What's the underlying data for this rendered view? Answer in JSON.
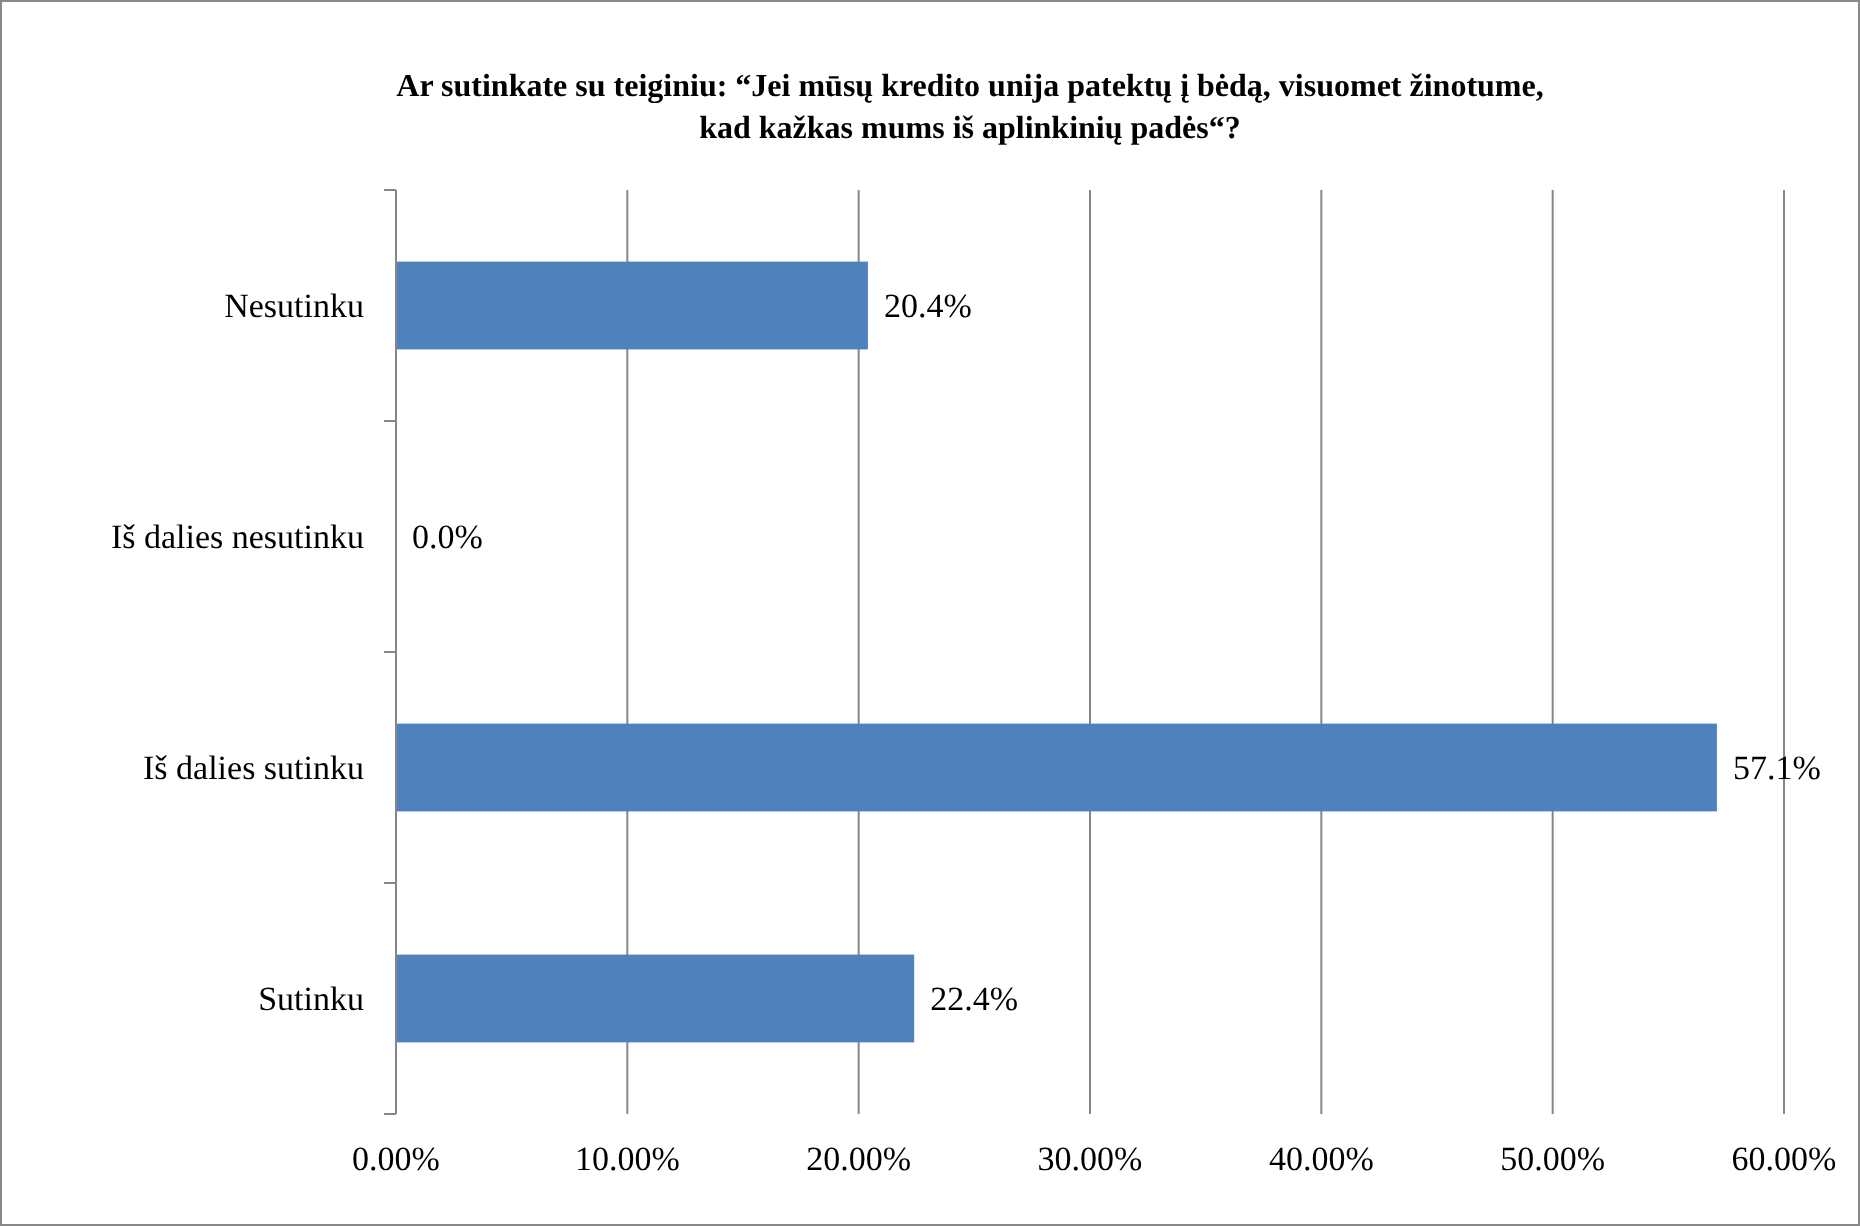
{
  "chart_data": {
    "type": "bar",
    "orientation": "horizontal",
    "title": "Ar sutinkate su teiginiu: “Jei mūsų kredito unija patektų į bėdą, visuomet žinotume,\nkad kažkas mums iš aplinkinių padės“?",
    "categories": [
      "Nesutinku",
      "Iš dalies nesutinku",
      "Iš dalies sutinku",
      "Sutinku"
    ],
    "values": [
      20.4,
      0,
      57.1,
      22.4
    ],
    "value_labels": [
      "20.4%",
      "0.0%",
      "57.1%",
      "22.4%"
    ],
    "color": "#4f81bd",
    "xlim": [
      0,
      60
    ],
    "xticks": [
      {
        "value": 0,
        "label": "0.00%"
      },
      {
        "value": 10,
        "label": "10.00%"
      },
      {
        "value": 20,
        "label": "20.00%"
      },
      {
        "value": 30,
        "label": "30.00%"
      },
      {
        "value": 40,
        "label": "40.00%"
      },
      {
        "value": 50,
        "label": "50.00%"
      },
      {
        "value": 60,
        "label": "60.00%"
      }
    ],
    "grid": "x"
  }
}
